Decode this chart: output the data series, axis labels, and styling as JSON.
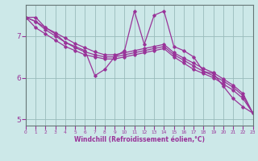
{
  "title": "",
  "xlabel": "Windchill (Refroidissement éolien,°C)",
  "ylabel": "",
  "background_color": "#cce8e8",
  "line_color": "#993399",
  "grid_color": "#99bbbb",
  "x_ticks": [
    0,
    1,
    2,
    3,
    4,
    5,
    6,
    7,
    8,
    9,
    10,
    11,
    12,
    13,
    14,
    15,
    16,
    17,
    18,
    19,
    20,
    21,
    22,
    23
  ],
  "y_ticks": [
    5,
    6,
    7
  ],
  "xlim": [
    0,
    23
  ],
  "ylim": [
    4.85,
    7.75
  ],
  "series": [
    [
      7.45,
      7.45,
      7.2,
      7.05,
      6.85,
      6.75,
      6.65,
      6.05,
      6.2,
      6.5,
      6.65,
      7.6,
      6.8,
      7.5,
      7.6,
      6.75,
      6.65,
      6.5,
      6.15,
      6.1,
      5.8,
      5.5,
      5.3,
      5.15
    ],
    [
      7.45,
      7.2,
      7.05,
      6.9,
      6.75,
      6.65,
      6.55,
      6.5,
      6.45,
      6.45,
      6.5,
      6.55,
      6.6,
      6.65,
      6.7,
      6.5,
      6.35,
      6.2,
      6.1,
      6.0,
      5.85,
      5.7,
      5.5,
      5.15
    ],
    [
      7.45,
      7.35,
      7.15,
      7.0,
      6.85,
      6.72,
      6.62,
      6.55,
      6.5,
      6.5,
      6.55,
      6.6,
      6.65,
      6.7,
      6.75,
      6.55,
      6.42,
      6.28,
      6.15,
      6.05,
      5.92,
      5.77,
      5.57,
      5.15
    ],
    [
      7.45,
      7.35,
      7.2,
      7.08,
      6.95,
      6.82,
      6.72,
      6.62,
      6.55,
      6.55,
      6.6,
      6.65,
      6.7,
      6.75,
      6.8,
      6.6,
      6.47,
      6.35,
      6.22,
      6.12,
      5.97,
      5.82,
      5.62,
      5.15
    ]
  ]
}
